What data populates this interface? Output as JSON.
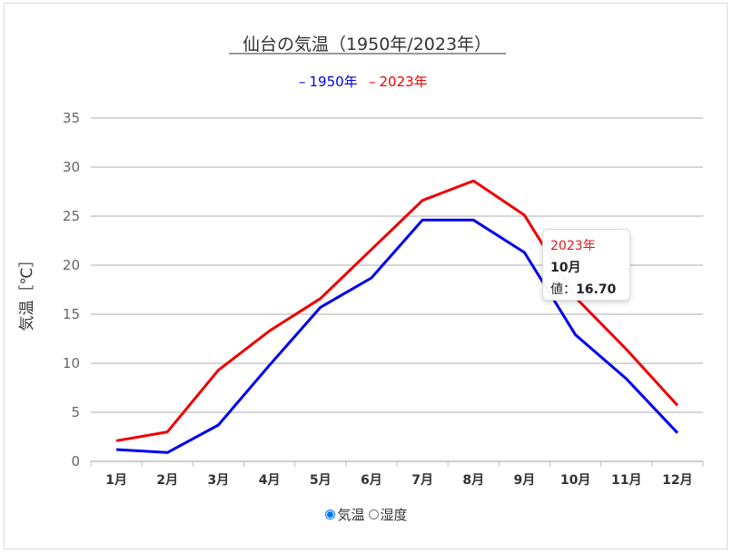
{
  "chart_data": {
    "type": "line",
    "title": "仙台の気温（1950年/2023年）",
    "ylabel": "気温［℃］",
    "xlabel": "",
    "ylim": [
      0,
      35
    ],
    "yticks": [
      0,
      5,
      10,
      15,
      20,
      25,
      30,
      35
    ],
    "grid": true,
    "legend_position": "top-center",
    "categories": [
      "1月",
      "2月",
      "3月",
      "4月",
      "5月",
      "6月",
      "7月",
      "8月",
      "9月",
      "10月",
      "11月",
      "12月"
    ],
    "series": [
      {
        "name": "1950年",
        "color": "#0000ee",
        "values": [
          1.2,
          0.9,
          3.7,
          9.8,
          15.7,
          18.7,
          24.6,
          24.6,
          21.3,
          12.9,
          8.4,
          2.9
        ]
      },
      {
        "name": "2023年",
        "color": "#ee0000",
        "values": [
          2.1,
          3.0,
          9.3,
          13.3,
          16.6,
          21.6,
          26.6,
          28.6,
          25.1,
          16.7,
          11.4,
          5.7
        ]
      }
    ]
  },
  "legend_marker": "–",
  "tooltip": {
    "series": "2023年",
    "month": "10月",
    "value_prefix": "値：",
    "value": "16.70"
  },
  "controls": {
    "options": [
      {
        "label": "気温",
        "checked": true
      },
      {
        "label": "湿度",
        "checked": false
      }
    ]
  }
}
